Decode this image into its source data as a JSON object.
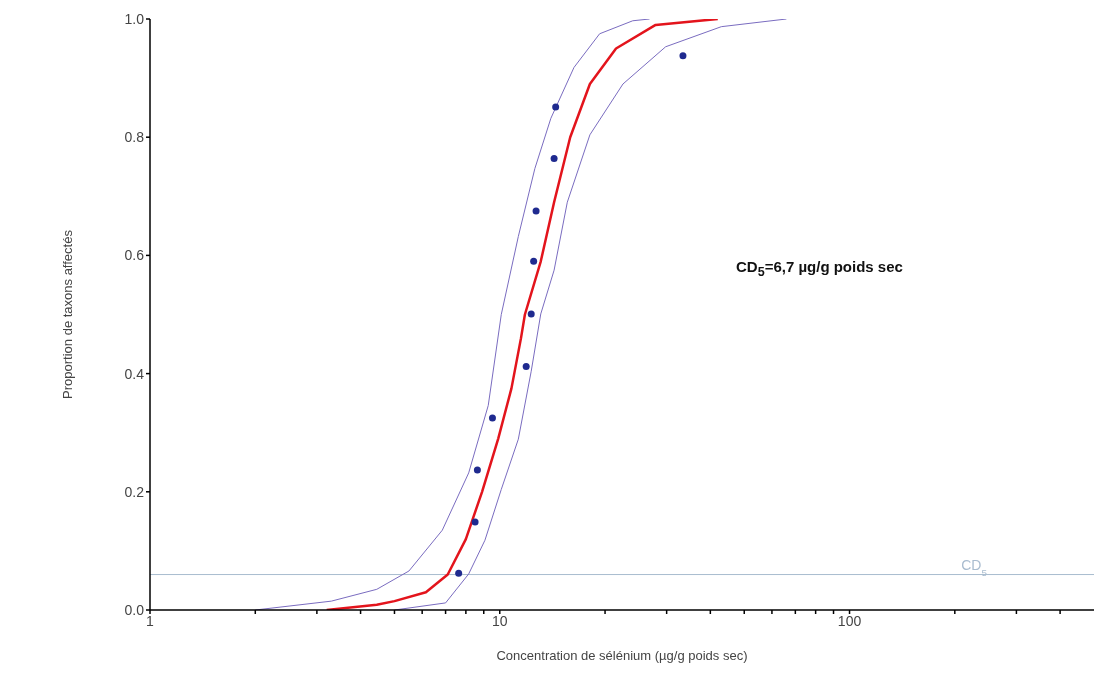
{
  "chart_data": {
    "type": "line",
    "xlabel": "Concentration de sélénium (µg/g poids sec)",
    "ylabel": "Proportion de taxons affectés",
    "log": "x",
    "xlim": [
      1,
      500
    ],
    "ylim": [
      0,
      1
    ],
    "xticks": [
      1,
      {
        "value": 2,
        "label": null
      },
      {
        "value": 3,
        "label": null
      },
      {
        "value": 4,
        "label": null
      },
      {
        "value": 5,
        "label": null
      },
      {
        "value": 6,
        "label": null
      },
      {
        "value": 7,
        "label": null
      },
      {
        "value": 8,
        "label": null
      },
      {
        "value": 9,
        "label": null
      },
      10,
      {
        "value": 20,
        "label": null
      },
      {
        "value": 30,
        "label": null
      },
      {
        "value": 40,
        "label": null
      },
      {
        "value": 50,
        "label": null
      },
      {
        "value": 60,
        "label": null
      },
      {
        "value": 70,
        "label": null
      },
      {
        "value": 80,
        "label": null
      },
      {
        "value": 90,
        "label": null
      },
      100,
      {
        "value": 200,
        "label": null
      },
      {
        "value": 300,
        "label": null
      },
      {
        "value": 400,
        "label": null
      }
    ],
    "yticks": [
      {
        "value": 0,
        "label": "0.0"
      },
      0.2,
      0.4,
      0.6,
      0.8,
      {
        "value": 1,
        "label": "1.0"
      }
    ],
    "series": [
      {
        "color": "#7a6cc0",
        "x": [
          2.0,
          3.3,
          4.45,
          5.5,
          6.85,
          8.15,
          9.27,
          10.1,
          11.3,
          12.6,
          14.0,
          16.3,
          19.3,
          24,
          26.8
        ],
        "values": [
          0,
          0.015,
          0.035,
          0.066,
          0.135,
          0.232,
          0.346,
          0.5,
          0.632,
          0.747,
          0.832,
          0.918,
          0.975,
          0.997,
          1.0
        ]
      },
      {
        "color": "#7a6cc0",
        "x": [
          5.0,
          7.0,
          8.15,
          9.07,
          10.1,
          11.3,
          12.3,
          13.1,
          14.3,
          15.6,
          18.1,
          22.5,
          29.8,
          43,
          66
        ],
        "values": [
          0,
          0.012,
          0.061,
          0.118,
          0.204,
          0.289,
          0.404,
          0.501,
          0.575,
          0.69,
          0.804,
          0.89,
          0.953,
          0.987,
          1.0
        ]
      },
      {
        "color": "#e3141c",
        "x": [
          3.2,
          4.45,
          5.0,
          6.15,
          7.1,
          8.0,
          8.9,
          9.9,
          10.8,
          11.5,
          11.8,
          13.1,
          14.3,
          15.9,
          18.1,
          21.5,
          27.9,
          42
        ],
        "values": [
          0,
          0.009,
          0.015,
          0.03,
          0.06,
          0.12,
          0.2,
          0.29,
          0.375,
          0.46,
          0.5,
          0.59,
          0.69,
          0.8,
          0.89,
          0.95,
          0.99,
          1.0
        ]
      },
      {
        "type": "scatter",
        "color": "#1f2a8f",
        "marker": "circle",
        "x": [
          7.63,
          8.5,
          8.63,
          9.53,
          11.9,
          12.3,
          12.5,
          12.7,
          14.3,
          14.45,
          33.4
        ],
        "values": [
          0.062,
          0.149,
          0.237,
          0.325,
          0.412,
          0.501,
          0.59,
          0.675,
          0.764,
          0.851,
          0.938
        ]
      }
    ],
    "ref_lines": [
      {
        "axis": "y",
        "value": 0.06,
        "label": "CD$_{5}$",
        "color": "#a9bccf"
      }
    ],
    "annotations": [
      "CD$_{5}$=6,7 µg/g poids sec"
    ]
  }
}
